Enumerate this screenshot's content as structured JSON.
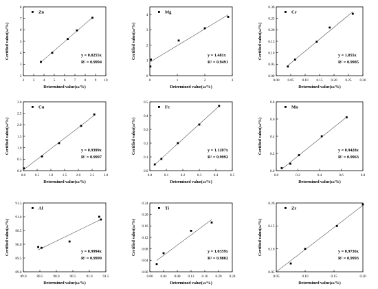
{
  "chart_data": [
    {
      "type": "scatter",
      "element": "Zn",
      "xlabel": "Determined value(ω/%)",
      "ylabel": "Certified value(ω/%)",
      "xlim": [
        2,
        10
      ],
      "ylim": [
        2,
        8
      ],
      "xticks": [
        2,
        3,
        4,
        5,
        6,
        7,
        8,
        9,
        10
      ],
      "yticks": [
        2,
        3,
        4,
        5,
        6,
        7,
        8
      ],
      "equation": "y = 0.8255x",
      "r2": "R² = 0.9994",
      "slope": 0.8255,
      "x": [
        3.7,
        4.8,
        6.3,
        7.2,
        8.7
      ],
      "y": [
        3.2,
        4.0,
        5.2,
        5.95,
        7.05
      ]
    },
    {
      "type": "scatter",
      "element": "Mg",
      "xlabel": "Determined value(ω/%)",
      "ylabel": "Certified value(ω/%)",
      "xlim": [
        0,
        3
      ],
      "ylim": [
        0,
        4.5
      ],
      "xticks": [
        0,
        1,
        2,
        3
      ],
      "yticks": [
        0,
        1,
        2,
        3,
        4
      ],
      "equation": "y = 1.481x",
      "r2": "R² = 0.9491",
      "slope": 1.481,
      "x": [
        0.02,
        0.04,
        1.05,
        2.0,
        2.85
      ],
      "y": [
        0.6,
        1.05,
        2.3,
        3.1,
        3.85
      ]
    },
    {
      "type": "scatter",
      "element": "Cr",
      "xlabel": "Determined value(ω/%)",
      "ylabel": "Certified value(ω/%)",
      "xlim": [
        0,
        0.3
      ],
      "ylim": [
        0,
        0.3
      ],
      "xticks": [
        0.0,
        0.05,
        0.1,
        0.15,
        0.2,
        0.25,
        0.3
      ],
      "yticks": [
        0.0,
        0.05,
        0.1,
        0.15,
        0.2,
        0.25,
        0.3
      ],
      "xtick_labels": [
        "0.00",
        "0.05",
        "0.10",
        "0.15",
        "0.20",
        "0.25",
        "0.30"
      ],
      "ytick_labels": [
        "0.00",
        "0.05",
        "0.10",
        "0.15",
        "0.20",
        "0.25",
        "0.30"
      ],
      "equation": "y = 1.055x",
      "r2": "R² = 0.9985",
      "slope": 1.055,
      "x": [
        0.04,
        0.065,
        0.14,
        0.185,
        0.265
      ],
      "y": [
        0.04,
        0.07,
        0.148,
        0.21,
        0.27
      ]
    },
    {
      "type": "scatter",
      "element": "Cu",
      "xlabel": "Determined value(ω/%)",
      "ylabel": "Certified value(ω/%)",
      "xlim": [
        0,
        3
      ],
      "ylim": [
        0,
        3
      ],
      "xticks": [
        0,
        0.5,
        1.0,
        1.5,
        2.0,
        2.5,
        3.0
      ],
      "yticks": [
        0,
        0.5,
        1.0,
        1.5,
        2.0,
        2.5,
        3.0
      ],
      "xtick_labels": [
        "0.0",
        "0.5",
        "1.0",
        "1.5",
        "2.0",
        "2.5",
        "3.0"
      ],
      "ytick_labels": [
        "0.0",
        "0.5",
        "1.0",
        "1.5",
        "2.0",
        "2.5",
        "3.0"
      ],
      "equation": "y = 0.9399x",
      "r2": "R² = 0.9997",
      "slope": 0.9399,
      "x": [
        0.02,
        0.68,
        1.3,
        2.1,
        2.58
      ],
      "y": [
        0.1,
        0.62,
        1.2,
        1.95,
        2.45
      ]
    },
    {
      "type": "scatter",
      "element": "Fe",
      "xlabel": "Determined value(ω/%)",
      "ylabel": "Certified value(ω/%)",
      "xlim": [
        0,
        0.5
      ],
      "ylim": [
        0,
        0.5
      ],
      "xticks": [
        0,
        0.1,
        0.2,
        0.3,
        0.4,
        0.5
      ],
      "yticks": [
        0,
        0.1,
        0.2,
        0.3,
        0.4,
        0.5
      ],
      "xtick_labels": [
        "0.0",
        "0.1",
        "0.2",
        "0.3",
        "0.4",
        "0.5"
      ],
      "ytick_labels": [
        "0.0",
        "0.1",
        "0.2",
        "0.3",
        "0.4",
        "0.5"
      ],
      "equation": "y = 1.1207x",
      "r2": "R² = 0.9992",
      "slope": 1.1207,
      "x": [
        0.03,
        0.07,
        0.17,
        0.3,
        0.42
      ],
      "y": [
        0.045,
        0.085,
        0.2,
        0.335,
        0.47
      ]
    },
    {
      "type": "scatter",
      "element": "Mn",
      "xlabel": "Determined value(ω/%)",
      "ylabel": "Certified value(ω/%)",
      "xlim": [
        0,
        0.8
      ],
      "ylim": [
        0,
        0.8
      ],
      "xticks": [
        0,
        0.2,
        0.4,
        0.6,
        0.8
      ],
      "yticks": [
        0,
        0.2,
        0.4,
        0.6,
        0.8
      ],
      "xtick_labels": [
        "0.0",
        "0.2",
        "0.4",
        "0.6",
        "0.8"
      ],
      "ytick_labels": [
        "0.0",
        "0.2",
        "0.4",
        "0.6",
        "0.8"
      ],
      "equation": "y = 0.9428x",
      "r2": "R² = 0.9963",
      "slope": 0.9428,
      "x": [
        0.05,
        0.13,
        0.21,
        0.42,
        0.65
      ],
      "y": [
        0.03,
        0.08,
        0.18,
        0.4,
        0.62
      ]
    },
    {
      "type": "scatter",
      "element": "Al",
      "xlabel": "Determined value(ω/%)",
      "ylabel": "Certified value(ω/%)",
      "xlim": [
        89.0,
        91.5
      ],
      "ylim": [
        89.0,
        91.5
      ],
      "xticks": [
        89.0,
        89.5,
        90.0,
        90.5,
        91.0,
        91.5
      ],
      "yticks": [
        89.0,
        89.5,
        90.0,
        90.5,
        91.0,
        91.5
      ],
      "xtick_labels": [
        "89.0",
        "89.5",
        "90.0",
        "90.5",
        "91.0",
        "91.5"
      ],
      "ytick_labels": [
        "89.0",
        "89.5",
        "90.0",
        "90.5",
        "91.0",
        "91.5"
      ],
      "equation": "y = 0.9994x",
      "r2": "R² = 0.9999",
      "slope": 0.9994,
      "x": [
        89.45,
        89.55,
        90.4,
        91.3,
        91.35
      ],
      "y": [
        89.9,
        89.87,
        90.1,
        91.0,
        90.9
      ]
    },
    {
      "type": "scatter",
      "element": "Ti",
      "xlabel": "Determined value(ω/%)",
      "ylabel": "Certified value(ω/%)",
      "xlim": [
        0,
        0.24
      ],
      "ylim": [
        0,
        0.24
      ],
      "xticks": [
        0,
        0.04,
        0.08,
        0.12,
        0.16,
        0.2,
        0.24
      ],
      "yticks": [
        0,
        0.04,
        0.08,
        0.12,
        0.16,
        0.2,
        0.24
      ],
      "xtick_labels": [
        "0.00",
        "0.04",
        "0.08",
        "0.12",
        "0.16",
        "0.20",
        "0.24"
      ],
      "ytick_labels": [
        "0.00",
        "0.04",
        "0.08",
        "0.12",
        "0.16",
        "0.20",
        "0.24"
      ],
      "equation": "y = 1.0359x",
      "r2": "R² = 0.9802",
      "slope": 1.0359,
      "x": [
        0.02,
        0.04,
        0.12,
        0.18
      ],
      "y": [
        0.027,
        0.065,
        0.143,
        0.172
      ]
    },
    {
      "type": "scatter",
      "element": "Zr",
      "xlabel": "Determined value(ω/%)",
      "ylabel": "Certified value(ω/%)",
      "xlim": [
        0.05,
        0.2
      ],
      "ylim": [
        0.05,
        0.2
      ],
      "xticks": [
        0.05,
        0.1,
        0.15,
        0.2
      ],
      "yticks": [
        0.05,
        0.1,
        0.15,
        0.2
      ],
      "xtick_labels": [
        "0.05",
        "0.10",
        "0.15",
        "0.20"
      ],
      "ytick_labels": [
        "0.05",
        "0.10",
        "0.15",
        "0.20"
      ],
      "equation": "y = 0.9736x",
      "r2": "R² = 0.9993",
      "slope": 0.9736,
      "x": [
        0.03,
        0.075,
        0.1,
        0.155,
        0.2
      ],
      "y": [
        0.035,
        0.068,
        0.1,
        0.15,
        0.197
      ]
    }
  ]
}
